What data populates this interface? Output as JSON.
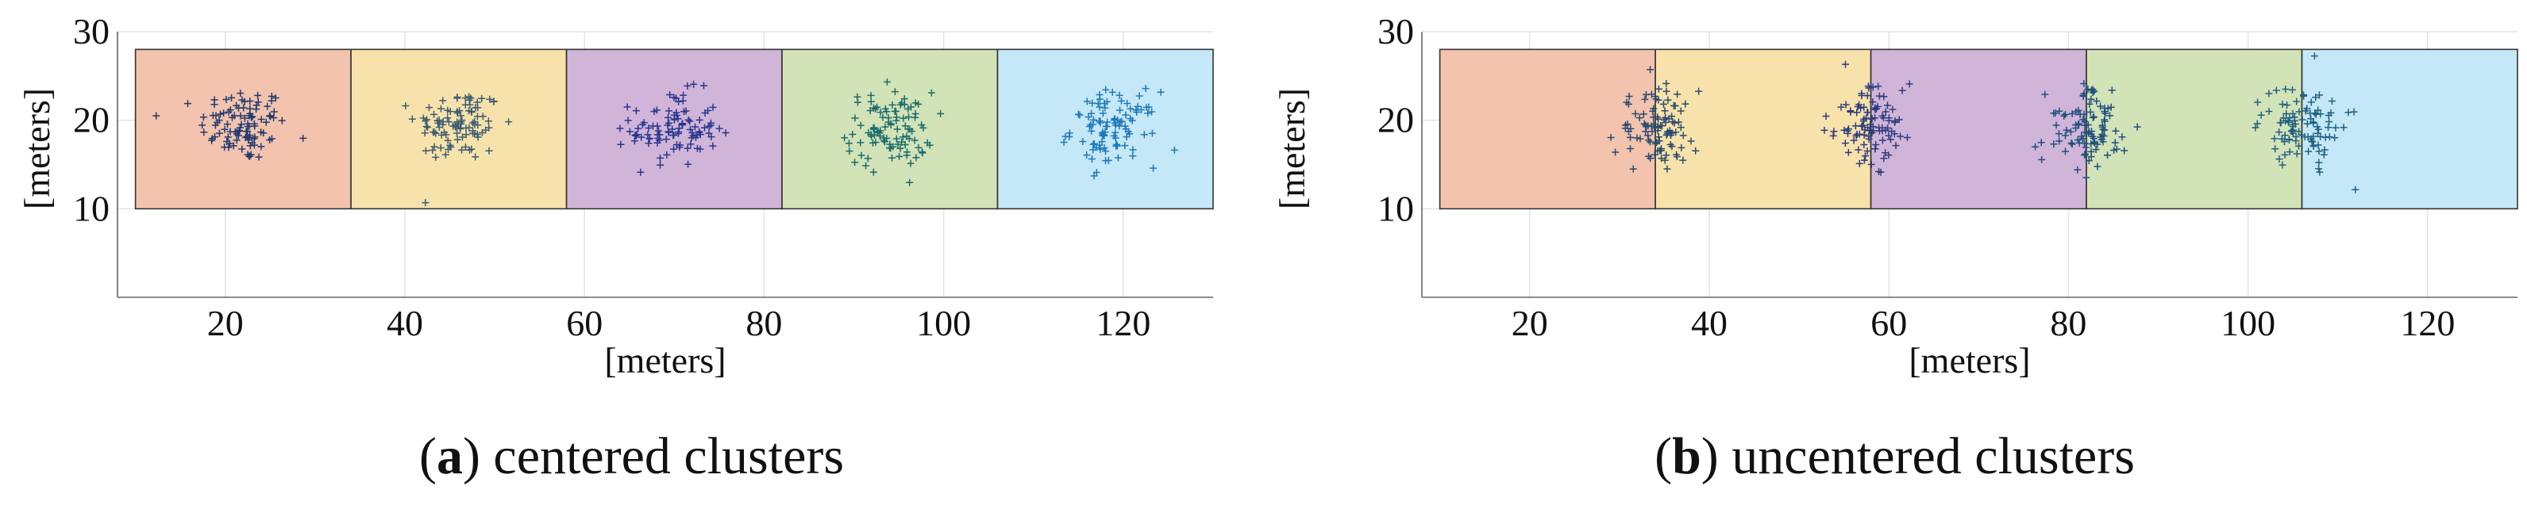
{
  "chart_data": [
    {
      "type": "scatter",
      "title": "",
      "xlabel": "[meters]",
      "ylabel": "[meters]",
      "xlim": [
        8,
        130
      ],
      "ylim": [
        0,
        30
      ],
      "xticks": [
        20,
        40,
        60,
        80,
        100,
        120
      ],
      "yticks": [
        10,
        20,
        30
      ],
      "grid": true,
      "zones": [
        {
          "x": [
            10,
            34
          ],
          "y": [
            10,
            28
          ],
          "color": "#f3c3ae"
        },
        {
          "x": [
            34,
            58
          ],
          "y": [
            10,
            28
          ],
          "color": "#f8e2ab"
        },
        {
          "x": [
            58,
            82
          ],
          "y": [
            10,
            28
          ],
          "color": "#d1b5d8"
        },
        {
          "x": [
            82,
            106
          ],
          "y": [
            10,
            28
          ],
          "color": "#d3e3b8"
        },
        {
          "x": [
            106,
            130
          ],
          "y": [
            10,
            28
          ],
          "color": "#c4e8f7"
        }
      ],
      "series": [
        {
          "center": [
            22,
            19.5
          ],
          "spread": [
            2.4,
            2.1
          ],
          "count": 100,
          "color": "#1f3a6e"
        },
        {
          "center": [
            46,
            19.5
          ],
          "spread": [
            2.4,
            2.1
          ],
          "count": 100,
          "color": "#3b5c72"
        },
        {
          "center": [
            70,
            19
          ],
          "spread": [
            2.4,
            2.1
          ],
          "count": 100,
          "color": "#27368e"
        },
        {
          "center": [
            94,
            19
          ],
          "spread": [
            2.4,
            2.1
          ],
          "count": 100,
          "color": "#1a6b6a"
        },
        {
          "center": [
            119,
            19
          ],
          "spread": [
            2.4,
            2.1
          ],
          "count": 100,
          "color": "#1e78b8"
        }
      ]
    },
    {
      "type": "scatter",
      "title": "",
      "xlabel": "[meters]",
      "ylabel": "[meters]",
      "xlim": [
        8,
        130
      ],
      "ylim": [
        0,
        30
      ],
      "xticks": [
        20,
        40,
        60,
        80,
        100,
        120
      ],
      "yticks": [
        10,
        20,
        30
      ],
      "grid": true,
      "zones": [
        {
          "x": [
            10,
            34
          ],
          "y": [
            10,
            28
          ],
          "color": "#f3c3ae"
        },
        {
          "x": [
            34,
            58
          ],
          "y": [
            10,
            28
          ],
          "color": "#f8e2ab"
        },
        {
          "x": [
            58,
            82
          ],
          "y": [
            10,
            28
          ],
          "color": "#d1b5d8"
        },
        {
          "x": [
            82,
            106
          ],
          "y": [
            10,
            28
          ],
          "color": "#d3e3b8"
        },
        {
          "x": [
            106,
            130
          ],
          "y": [
            10,
            28
          ],
          "color": "#c4e8f7"
        }
      ],
      "series": [
        {
          "center": [
            34,
            19
          ],
          "spread": [
            2.2,
            2.2
          ],
          "count": 100,
          "color": "#2a4a6e"
        },
        {
          "center": [
            58,
            19.5
          ],
          "spread": [
            2.2,
            2.2
          ],
          "count": 100,
          "color": "#2c3c80"
        },
        {
          "center": [
            82,
            19
          ],
          "spread": [
            2.2,
            2.2
          ],
          "count": 100,
          "color": "#1f4f7c"
        },
        {
          "center": [
            106,
            19.5
          ],
          "spread": [
            2.2,
            2.2
          ],
          "count": 100,
          "color": "#1f5f82"
        }
      ]
    }
  ],
  "captions": [
    {
      "letter": "a",
      "text": "centered clusters"
    },
    {
      "letter": "b",
      "text": "uncentered clusters"
    }
  ]
}
